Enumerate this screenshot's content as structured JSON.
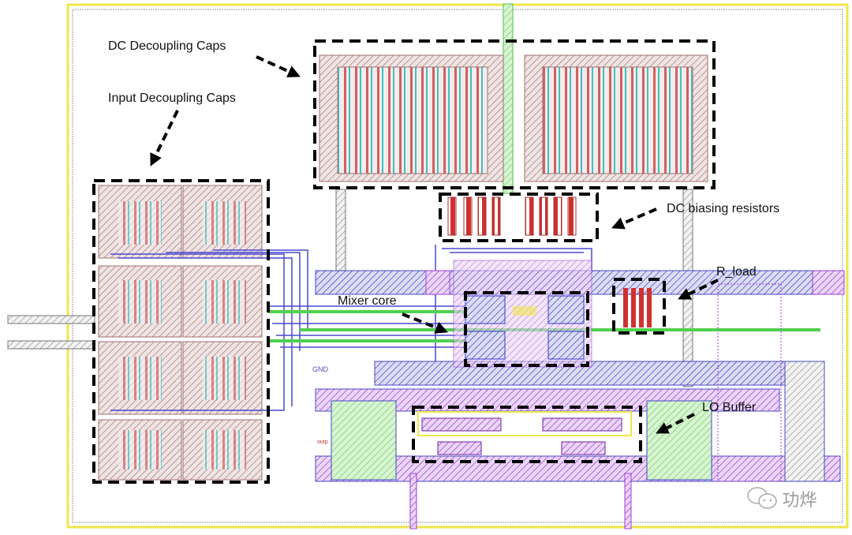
{
  "annotations": {
    "dc_decoupling_caps": "DC Decoupling Caps",
    "input_decoupling_caps": "Input Decoupling Caps",
    "dc_biasing_resistors": "DC biasing resistors",
    "mixer_core": "Mixer core",
    "r_load": "R_load",
    "lo_buffer": "LO Buffer"
  },
  "pin_labels": {
    "gnd": "GND",
    "outp": "outp"
  },
  "watermark": {
    "text": "功烨",
    "icon": "wechat-icon"
  },
  "colors": {
    "border": "#f0e64a",
    "metal_blue": "#3a3ad0",
    "metal_purple": "#b040e0",
    "metal_green": "#50d050",
    "poly_red": "#d03030",
    "cap_brown": "#a07070",
    "annotation": "#000000"
  }
}
